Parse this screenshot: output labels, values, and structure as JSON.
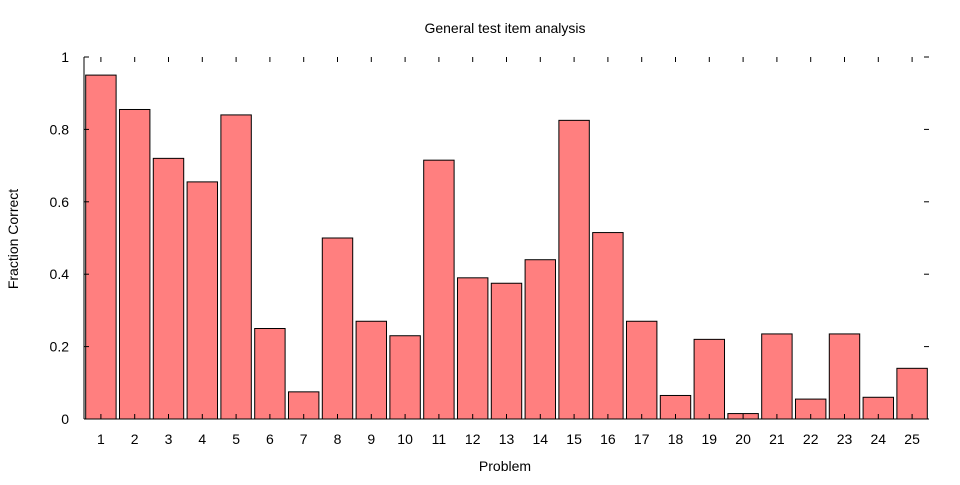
{
  "chart_data": {
    "type": "bar",
    "title": "General test item analysis",
    "xlabel": "Problem",
    "ylabel": "Fraction Correct",
    "categories": [
      "1",
      "2",
      "3",
      "4",
      "5",
      "6",
      "7",
      "8",
      "9",
      "10",
      "11",
      "12",
      "13",
      "14",
      "15",
      "16",
      "17",
      "18",
      "19",
      "20",
      "21",
      "22",
      "23",
      "24",
      "25"
    ],
    "values": [
      0.95,
      0.855,
      0.72,
      0.655,
      0.84,
      0.25,
      0.075,
      0.5,
      0.27,
      0.23,
      0.715,
      0.39,
      0.375,
      0.44,
      0.825,
      0.515,
      0.27,
      0.065,
      0.22,
      0.015,
      0.235,
      0.055,
      0.235,
      0.06,
      0.14
    ],
    "ylim": [
      0,
      1
    ],
    "yticks": [
      0,
      0.2,
      0.4,
      0.6,
      0.8,
      1
    ],
    "ytick_labels": [
      "0",
      "0.2",
      "0.4",
      "0.6",
      "0.8",
      "1"
    ],
    "grid": false,
    "legend": "none",
    "colors": {
      "bar_fill": "#ff7f7f",
      "bar_stroke": "#000000",
      "axis": "#000000"
    }
  }
}
